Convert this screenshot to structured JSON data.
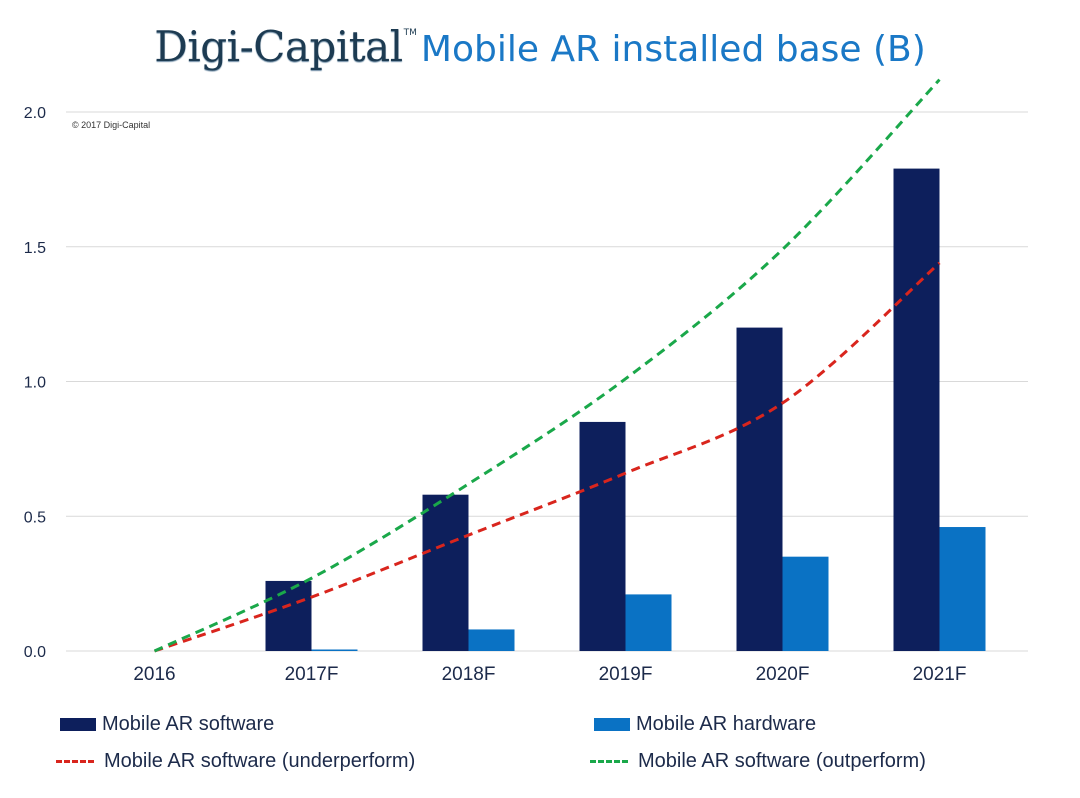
{
  "header": {
    "brand": "Digi-Capital",
    "trademark": "TM",
    "title": "Mobile AR installed base (B)"
  },
  "copyright": "© 2017 Digi-Capital",
  "colors": {
    "software": "#0d1f5c",
    "hardware": "#0a72c4",
    "underperform": "#d9251d",
    "outperform": "#1aa84a",
    "grid": "#d9d9d9"
  },
  "chart_data": {
    "type": "bar",
    "categories": [
      "2016",
      "2017F",
      "2018F",
      "2019F",
      "2020F",
      "2021F"
    ],
    "series": [
      {
        "name": "Mobile AR software",
        "kind": "bar",
        "values": [
          0,
          0.26,
          0.58,
          0.85,
          1.2,
          1.79
        ]
      },
      {
        "name": "Mobile AR hardware",
        "kind": "bar",
        "values": [
          0,
          0.005,
          0.08,
          0.21,
          0.35,
          0.46
        ]
      },
      {
        "name": "Mobile AR software (underperform)",
        "kind": "dashed-line",
        "values": [
          0,
          0.2,
          0.43,
          0.66,
          0.92,
          1.44
        ]
      },
      {
        "name": "Mobile AR software (outperform)",
        "kind": "dashed-line",
        "values": [
          0,
          0.27,
          0.62,
          1.01,
          1.49,
          2.12
        ]
      }
    ],
    "y_ticks": [
      "0.0",
      "0.5",
      "1.0",
      "1.5",
      "2.0"
    ],
    "ylim": [
      0,
      2.0
    ],
    "grid": true,
    "legend_position": "bottom"
  },
  "legend": [
    {
      "label": "Mobile AR software",
      "type": "box",
      "color": "#0d1f5c"
    },
    {
      "label": "Mobile AR hardware",
      "type": "box",
      "color": "#0a72c4"
    },
    {
      "label": "Mobile AR software (underperform)",
      "type": "dash",
      "color": "#d9251d"
    },
    {
      "label": "Mobile AR software (outperform)",
      "type": "dash",
      "color": "#1aa84a"
    }
  ]
}
